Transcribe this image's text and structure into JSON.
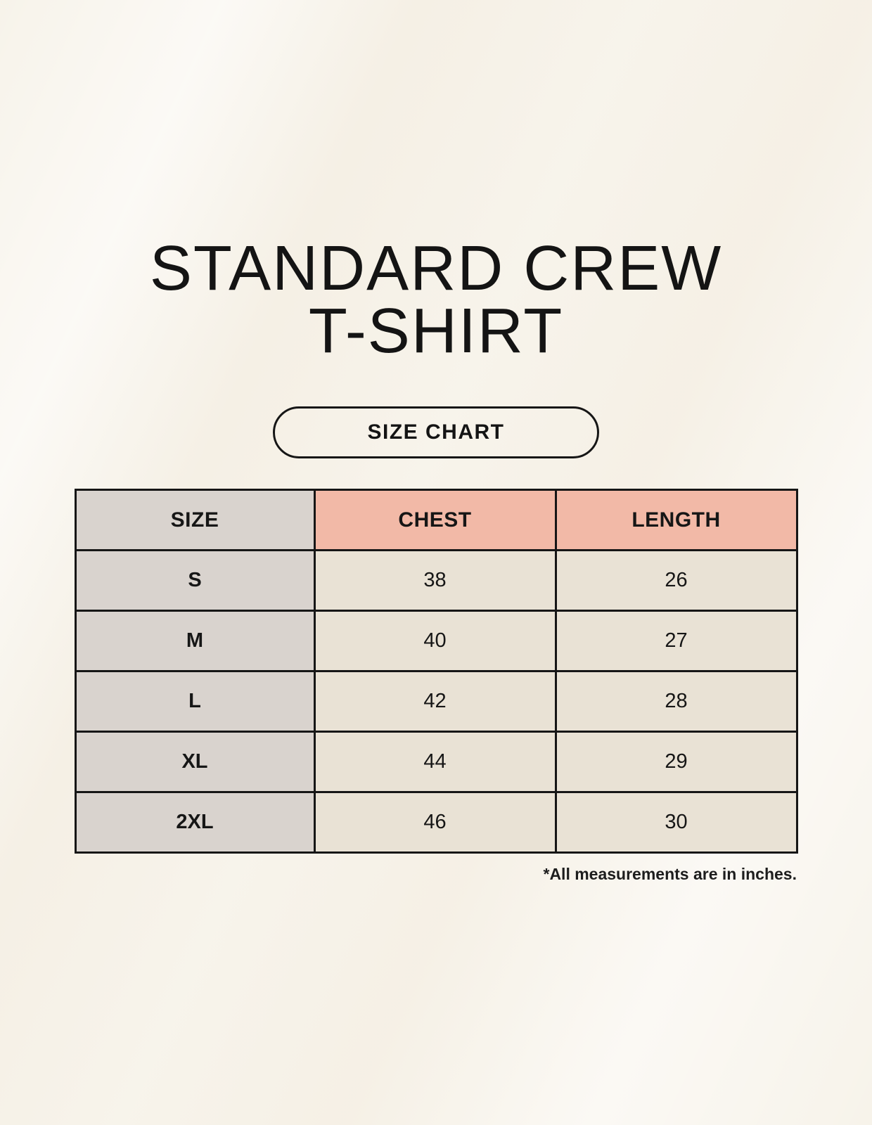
{
  "page": {
    "title_line1": "STANDARD CREW",
    "title_line2": "T-SHIRT",
    "button_label": "SIZE CHART"
  },
  "chart_data": {
    "type": "table",
    "title": "STANDARD CREW T-SHIRT — SIZE CHART",
    "columns": [
      "SIZE",
      "CHEST",
      "LENGTH"
    ],
    "rows": [
      [
        "S",
        "38",
        "26"
      ],
      [
        "M",
        "40",
        "27"
      ],
      [
        "L",
        "42",
        "28"
      ],
      [
        "XL",
        "44",
        "29"
      ],
      [
        "2XL",
        "46",
        "30"
      ]
    ],
    "note": "*All measurements are in inches."
  },
  "colors": {
    "background": "#f7f3ea",
    "header_pink": "#f2b9a7",
    "cell_gray": "#d9d3ce",
    "cell_cream": "#e9e2d5",
    "border": "#161616",
    "text": "#141414"
  }
}
